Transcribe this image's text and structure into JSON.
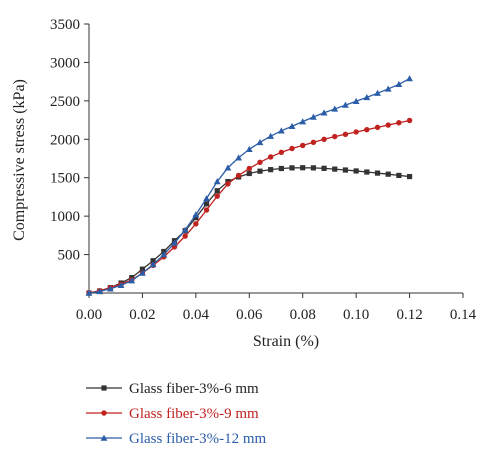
{
  "chart_data": {
    "type": "line",
    "title": "",
    "xlabel": "Strain (%)",
    "ylabel": "Compressive stress (kPa)",
    "xlim": [
      0,
      0.14
    ],
    "ylim": [
      0,
      3500
    ],
    "x_ticks": [
      "0.00",
      "0.02",
      "0.04",
      "0.06",
      "0.08",
      "0.10",
      "0.12",
      "0.14"
    ],
    "x_tick_values": [
      0,
      0.02,
      0.04,
      0.06,
      0.08,
      0.1,
      0.12,
      0.14
    ],
    "y_ticks": [
      "500",
      "1000",
      "1500",
      "2000",
      "2500",
      "3000",
      "3500"
    ],
    "y_tick_values": [
      500,
      1000,
      1500,
      2000,
      2500,
      3000,
      3500
    ],
    "grid": false,
    "legend_position": "bottom",
    "x": [
      0,
      0.004,
      0.008,
      0.012,
      0.016,
      0.02,
      0.024,
      0.028,
      0.032,
      0.036,
      0.04,
      0.044,
      0.048,
      0.052,
      0.056,
      0.06,
      0.064,
      0.068,
      0.072,
      0.076,
      0.08,
      0.084,
      0.088,
      0.092,
      0.096,
      0.1,
      0.104,
      0.108,
      0.112,
      0.116,
      0.12
    ],
    "series": [
      {
        "name": "Glass fiber-3%-6 mm",
        "color": "#333333",
        "marker": "square",
        "values": [
          0,
          25,
          70,
          130,
          200,
          310,
          420,
          540,
          680,
          810,
          980,
          1160,
          1330,
          1450,
          1510,
          1555,
          1585,
          1605,
          1620,
          1628,
          1630,
          1628,
          1622,
          1612,
          1600,
          1588,
          1574,
          1560,
          1546,
          1530,
          1515
        ]
      },
      {
        "name": "Glass fiber-3%-9 mm",
        "color": "#c0221f",
        "marker": "circle",
        "values": [
          0,
          30,
          70,
          115,
          170,
          260,
          360,
          470,
          600,
          740,
          900,
          1080,
          1260,
          1420,
          1530,
          1620,
          1700,
          1770,
          1830,
          1880,
          1920,
          1960,
          2000,
          2035,
          2065,
          2095,
          2125,
          2155,
          2185,
          2215,
          2245
        ]
      },
      {
        "name": "Glass fiber-3%-12 mm",
        "color": "#2c5ea8",
        "marker": "triangle",
        "values": [
          0,
          20,
          55,
          100,
          160,
          260,
          370,
          500,
          650,
          820,
          1020,
          1230,
          1450,
          1630,
          1760,
          1870,
          1960,
          2040,
          2110,
          2170,
          2230,
          2290,
          2345,
          2395,
          2445,
          2495,
          2545,
          2600,
          2655,
          2715,
          2790
        ]
      }
    ]
  }
}
